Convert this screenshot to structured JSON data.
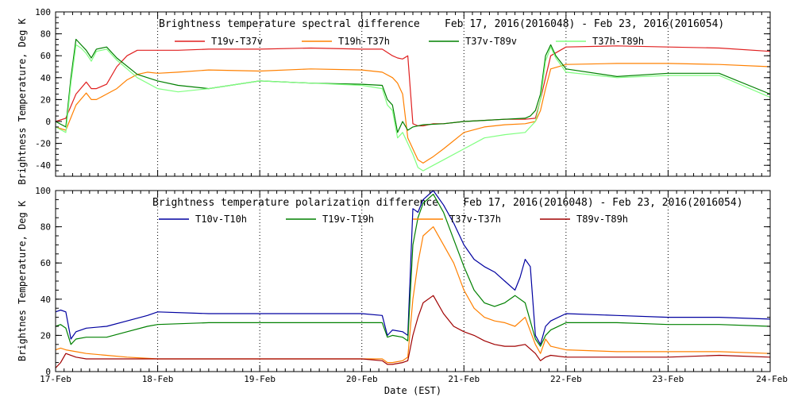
{
  "x_axis": {
    "label": "Date (EST)",
    "ticks": [
      "17-Feb",
      "18-Feb",
      "19-Feb",
      "20-Feb",
      "21-Feb",
      "22-Feb",
      "23-Feb",
      "24-Feb"
    ]
  },
  "chart_data": [
    {
      "type": "line",
      "title": "Brightness temperature spectral difference    Feb 17, 2016(2016048) - Feb 23, 2016(2016054)",
      "xlabel": "",
      "ylabel": "Brightness Temperature, Deg K",
      "xlim": [
        0,
        7
      ],
      "ylim": [
        -50,
        100
      ],
      "yticks": [
        -40,
        -20,
        0,
        20,
        40,
        60,
        80,
        100
      ],
      "grid": true,
      "legend_placement": "top",
      "series": [
        {
          "name": "T19v-T37v",
          "color": "#e02020",
          "x": [
            0,
            0.1,
            0.2,
            0.3,
            0.35,
            0.4,
            0.5,
            0.6,
            0.7,
            0.8,
            0.9,
            1.0,
            1.2,
            1.5,
            2.0,
            2.5,
            3.0,
            3.2,
            3.3,
            3.35,
            3.4,
            3.45,
            3.5,
            3.55,
            3.6,
            3.7,
            3.8,
            4.0,
            4.2,
            4.4,
            4.6,
            4.7,
            4.75,
            4.8,
            4.85,
            5.0,
            5.5,
            6.0,
            6.5,
            7.0
          ],
          "y": [
            0,
            3,
            25,
            36,
            30,
            30,
            34,
            50,
            60,
            65,
            65,
            65,
            65,
            66,
            66,
            67,
            66,
            66,
            60,
            58,
            57,
            60,
            -2,
            -4,
            -4,
            -2,
            -2,
            0,
            1,
            2,
            2,
            3,
            20,
            40,
            60,
            68,
            69,
            68,
            67,
            64
          ]
        },
        {
          "name": "T19h-T37h",
          "color": "#ff8000",
          "x": [
            0,
            0.1,
            0.2,
            0.3,
            0.35,
            0.4,
            0.5,
            0.6,
            0.7,
            0.8,
            0.9,
            1.0,
            1.2,
            1.5,
            2.0,
            2.5,
            3.0,
            3.2,
            3.3,
            3.35,
            3.4,
            3.45,
            3.5,
            3.55,
            3.6,
            3.65,
            3.7,
            3.8,
            4.0,
            4.2,
            4.4,
            4.6,
            4.7,
            4.75,
            4.8,
            4.85,
            5.0,
            5.5,
            6.0,
            6.5,
            7.0
          ],
          "y": [
            -5,
            -8,
            15,
            26,
            20,
            20,
            25,
            30,
            38,
            43,
            45,
            44,
            45,
            47,
            46,
            48,
            47,
            45,
            40,
            35,
            25,
            -15,
            -25,
            -35,
            -38,
            -35,
            -32,
            -25,
            -10,
            -5,
            -3,
            -2,
            0,
            10,
            30,
            48,
            52,
            53,
            53,
            52,
            50
          ]
        },
        {
          "name": "T37v-T89v",
          "color": "#008000",
          "x": [
            0,
            0.1,
            0.15,
            0.2,
            0.25,
            0.3,
            0.35,
            0.4,
            0.5,
            0.6,
            0.8,
            1.0,
            1.2,
            1.5,
            2.0,
            2.5,
            3.0,
            3.2,
            3.25,
            3.3,
            3.35,
            3.4,
            3.45,
            3.5,
            3.6,
            3.8,
            4.0,
            4.2,
            4.4,
            4.6,
            4.65,
            4.7,
            4.75,
            4.8,
            4.85,
            4.9,
            5.0,
            5.5,
            6.0,
            6.5,
            7.0
          ],
          "y": [
            0,
            -5,
            40,
            75,
            70,
            65,
            58,
            66,
            68,
            58,
            43,
            37,
            33,
            30,
            37,
            35,
            34,
            33,
            20,
            15,
            -10,
            0,
            -8,
            -5,
            -3,
            -2,
            0,
            1,
            2,
            3,
            5,
            10,
            25,
            60,
            70,
            60,
            48,
            41,
            44,
            44,
            25
          ]
        },
        {
          "name": "T37h-T89h",
          "color": "#80ff80",
          "x": [
            0,
            0.1,
            0.15,
            0.2,
            0.25,
            0.3,
            0.35,
            0.4,
            0.5,
            0.6,
            0.8,
            1.0,
            1.2,
            1.5,
            2.0,
            2.5,
            3.0,
            3.2,
            3.25,
            3.3,
            3.35,
            3.4,
            3.45,
            3.5,
            3.55,
            3.6,
            3.7,
            3.8,
            4.0,
            4.2,
            4.4,
            4.6,
            4.65,
            4.7,
            4.75,
            4.8,
            4.85,
            4.9,
            5.0,
            5.5,
            6.0,
            6.5,
            7.0
          ],
          "y": [
            -5,
            -10,
            35,
            70,
            67,
            62,
            55,
            64,
            66,
            56,
            40,
            30,
            27,
            30,
            37,
            35,
            33,
            30,
            15,
            10,
            -15,
            -10,
            -20,
            -30,
            -42,
            -45,
            -40,
            -35,
            -25,
            -15,
            -12,
            -10,
            -5,
            0,
            20,
            55,
            68,
            58,
            45,
            40,
            42,
            42,
            22
          ]
        }
      ]
    },
    {
      "type": "line",
      "title": "Brightness temperature polarization difference    Feb 17, 2016(2016048) - Feb 23, 2016(2016054)",
      "xlabel": "Date (EST)",
      "ylabel": "Brightnes Temperature, Deg K",
      "xlim": [
        0,
        7
      ],
      "ylim": [
        0,
        100
      ],
      "yticks": [
        0,
        20,
        40,
        60,
        80,
        100
      ],
      "grid": true,
      "legend_placement": "top",
      "series": [
        {
          "name": "T10v-T10h",
          "color": "#0000a0",
          "x": [
            0,
            0.05,
            0.1,
            0.15,
            0.2,
            0.3,
            0.5,
            0.7,
            0.9,
            1.0,
            1.5,
            2.0,
            2.5,
            3.0,
            3.2,
            3.25,
            3.3,
            3.4,
            3.45,
            3.5,
            3.55,
            3.6,
            3.7,
            3.8,
            3.9,
            4.0,
            4.1,
            4.2,
            4.3,
            4.4,
            4.5,
            4.55,
            4.6,
            4.65,
            4.7,
            4.75,
            4.8,
            4.85,
            5.0,
            5.5,
            6.0,
            6.5,
            7.0
          ],
          "y": [
            33,
            34,
            33,
            18,
            22,
            24,
            25,
            28,
            31,
            33,
            32,
            32,
            32,
            32,
            31,
            20,
            23,
            22,
            20,
            90,
            88,
            95,
            100,
            92,
            82,
            70,
            62,
            58,
            55,
            50,
            45,
            52,
            62,
            58,
            20,
            15,
            25,
            28,
            32,
            31,
            30,
            30,
            29
          ]
        },
        {
          "name": "T19v-T19h",
          "color": "#008000",
          "x": [
            0,
            0.05,
            0.1,
            0.15,
            0.2,
            0.3,
            0.5,
            0.7,
            0.9,
            1.0,
            1.5,
            2.0,
            2.5,
            3.0,
            3.2,
            3.25,
            3.3,
            3.4,
            3.45,
            3.5,
            3.55,
            3.6,
            3.7,
            3.8,
            3.9,
            4.0,
            4.1,
            4.2,
            4.3,
            4.4,
            4.5,
            4.6,
            4.7,
            4.75,
            4.8,
            4.85,
            5.0,
            5.5,
            6.0,
            6.5,
            7.0
          ],
          "y": [
            25,
            26,
            24,
            15,
            18,
            19,
            19,
            22,
            25,
            26,
            27,
            27,
            27,
            27,
            27,
            19,
            20,
            19,
            17,
            70,
            85,
            93,
            98,
            88,
            73,
            58,
            45,
            38,
            36,
            38,
            42,
            38,
            18,
            14,
            20,
            23,
            27,
            27,
            26,
            26,
            25
          ]
        },
        {
          "name": "T37v-T37h",
          "color": "#ff8000",
          "x": [
            0,
            0.05,
            0.1,
            0.2,
            0.3,
            0.5,
            0.7,
            1.0,
            1.5,
            2.0,
            2.5,
            3.0,
            3.2,
            3.25,
            3.3,
            3.4,
            3.45,
            3.5,
            3.55,
            3.6,
            3.7,
            3.8,
            3.9,
            4.0,
            4.1,
            4.2,
            4.3,
            4.4,
            4.5,
            4.6,
            4.7,
            4.75,
            4.8,
            4.85,
            5.0,
            5.5,
            6.0,
            6.5,
            7.0
          ],
          "y": [
            12,
            13,
            12,
            11,
            10,
            9,
            8,
            7,
            7,
            7,
            7,
            7,
            7,
            5,
            5,
            6,
            8,
            40,
            60,
            75,
            80,
            70,
            60,
            45,
            35,
            30,
            28,
            27,
            25,
            30,
            15,
            10,
            18,
            14,
            12,
            11,
            11,
            11,
            10
          ]
        },
        {
          "name": "T89v-T89h",
          "color": "#a00000",
          "x": [
            0,
            0.05,
            0.1,
            0.2,
            0.3,
            0.5,
            0.7,
            1.0,
            1.5,
            2.0,
            2.5,
            3.0,
            3.2,
            3.25,
            3.3,
            3.4,
            3.45,
            3.5,
            3.55,
            3.6,
            3.7,
            3.8,
            3.9,
            4.0,
            4.1,
            4.2,
            4.3,
            4.4,
            4.5,
            4.6,
            4.7,
            4.75,
            4.8,
            4.85,
            5.0,
            5.5,
            6.0,
            6.5,
            7.0
          ],
          "y": [
            2,
            5,
            10,
            8,
            7,
            7,
            7,
            7,
            7,
            7,
            7,
            7,
            6,
            4,
            4,
            5,
            6,
            20,
            30,
            38,
            42,
            32,
            25,
            22,
            20,
            17,
            15,
            14,
            14,
            15,
            10,
            6,
            8,
            9,
            8,
            8,
            8,
            9,
            8
          ]
        }
      ]
    }
  ]
}
